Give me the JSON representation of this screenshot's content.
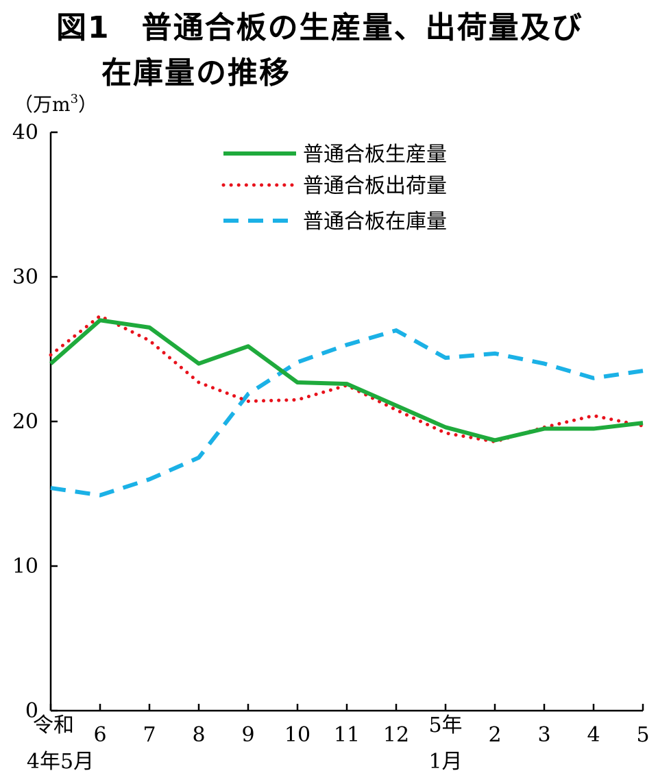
{
  "chart_data": {
    "type": "line",
    "title_line1": "図1　普通合板の生産量、出荷量及び",
    "title_line2": "在庫量の推移",
    "unit_label": "（万m",
    "unit_sup": "3",
    "unit_close": "）",
    "ylim": [
      0,
      40
    ],
    "y_ticks": [
      "0",
      "10",
      "20",
      "30",
      "40"
    ],
    "categories": [
      {
        "top": "令和",
        "bottom": "4年5月"
      },
      {
        "top": "6",
        "bottom": ""
      },
      {
        "top": "7",
        "bottom": ""
      },
      {
        "top": "8",
        "bottom": ""
      },
      {
        "top": "9",
        "bottom": ""
      },
      {
        "top": "10",
        "bottom": ""
      },
      {
        "top": "11",
        "bottom": ""
      },
      {
        "top": "12",
        "bottom": ""
      },
      {
        "top": "5年",
        "bottom": "1月"
      },
      {
        "top": "2",
        "bottom": ""
      },
      {
        "top": "3",
        "bottom": ""
      },
      {
        "top": "4",
        "bottom": ""
      },
      {
        "top": "5",
        "bottom": ""
      }
    ],
    "series": [
      {
        "name": "普通合板生産量",
        "color": "#1faa3c",
        "style": "solid",
        "values": [
          24.0,
          27.0,
          26.5,
          24.0,
          25.2,
          22.7,
          22.6,
          21.1,
          19.6,
          18.7,
          19.5,
          19.5,
          19.9
        ]
      },
      {
        "name": "普通合板出荷量",
        "color": "#e8121c",
        "style": "dotted",
        "values": [
          24.6,
          27.3,
          25.6,
          22.7,
          21.4,
          21.5,
          22.5,
          20.8,
          19.2,
          18.6,
          19.6,
          20.4,
          19.7
        ]
      },
      {
        "name": "普通合板在庫量",
        "color": "#1bb1e6",
        "style": "dashed",
        "values": [
          15.4,
          14.9,
          16.0,
          17.5,
          21.9,
          24.1,
          25.3,
          26.3,
          24.4,
          24.7,
          24.0,
          23.0,
          23.5
        ]
      }
    ]
  }
}
